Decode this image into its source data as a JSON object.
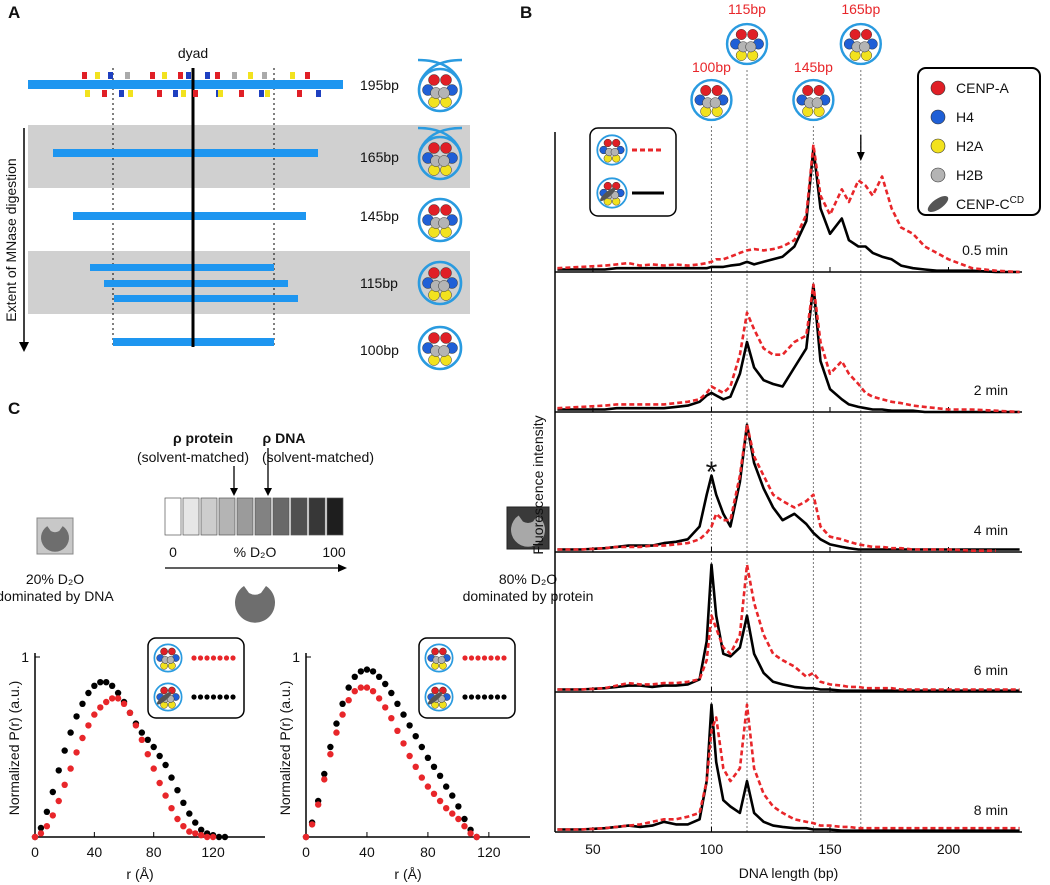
{
  "panel_a": {
    "label": "A",
    "dyad": "dyad",
    "axis_label": "Extent of MNase digestion",
    "fragments": [
      "195bp",
      "165bp",
      "145bp",
      "115bp",
      "100bp"
    ]
  },
  "panel_c_scheme": {
    "label": "C",
    "protein": "ρ protein",
    "protein_note": "(solvent-matched)",
    "dna": "ρ DNA",
    "dna_note": "(solvent-matched)",
    "scale_min": 0,
    "scale_unit": "% D₂O",
    "scale_max": 100,
    "left_box": "20% D₂O",
    "left_note": "dominated by DNA",
    "right_box": "80% D₂O",
    "right_note": "dominated by protein"
  },
  "chart_data": [
    {
      "type": "line",
      "label": "B",
      "xlabel": "DNA length (bp)",
      "ylabel": "Fluorescence intensity",
      "xlim": [
        34,
        231
      ],
      "xticks": [
        50,
        100,
        150,
        200
      ],
      "ylim": [
        0,
        1.1
      ],
      "markers": [
        {
          "x": 100,
          "label": "100bp"
        },
        {
          "x": 115,
          "label": "115bp"
        },
        {
          "x": 143,
          "label": "145bp"
        },
        {
          "x": 163,
          "label": "165bp"
        }
      ],
      "legend": [
        {
          "name": "CENP-A",
          "color": "#e01f26"
        },
        {
          "name": "H4",
          "color": "#1f5fd6"
        },
        {
          "name": "H2A",
          "color": "#f2e21e"
        },
        {
          "name": "H2B",
          "color": "#b4b4b4"
        },
        {
          "name": "CENP-C",
          "sup": "CD",
          "color": "#555555"
        }
      ],
      "x": [
        35,
        45,
        55,
        60,
        65,
        70,
        75,
        80,
        85,
        90,
        95,
        98,
        100,
        102,
        105,
        108,
        112,
        115,
        118,
        122,
        126,
        130,
        135,
        140,
        143,
        146,
        150,
        155,
        158,
        162,
        165,
        168,
        172,
        176,
        180,
        185,
        190,
        195,
        200,
        210,
        220,
        230
      ],
      "panels": [
        {
          "label": "0.5 min",
          "series": [
            {
              "color": "#000000",
              "values": [
                0.02,
                0.02,
                0.02,
                0.03,
                0.03,
                0.03,
                0.03,
                0.03,
                0.03,
                0.03,
                0.03,
                0.03,
                0.04,
                0.04,
                0.04,
                0.05,
                0.06,
                0.08,
                0.06,
                0.08,
                0.1,
                0.12,
                0.2,
                0.4,
                0.97,
                0.5,
                0.3,
                0.42,
                0.25,
                0.2,
                0.2,
                0.15,
                0.12,
                0.1,
                0.05,
                0.03,
                0.02,
                0.01,
                0.01,
                0.01,
                0,
                0
              ]
            },
            {
              "color": "#e8262a",
              "dash": true,
              "values": [
                0.03,
                0.04,
                0.05,
                0.06,
                0.07,
                0.05,
                0.06,
                0.05,
                0.06,
                0.05,
                0.06,
                0.07,
                0.08,
                0.1,
                0.1,
                0.12,
                0.15,
                0.17,
                0.18,
                0.17,
                0.18,
                0.2,
                0.25,
                0.45,
                1.0,
                0.6,
                0.45,
                0.65,
                0.55,
                0.72,
                0.68,
                0.6,
                0.75,
                0.5,
                0.35,
                0.3,
                0.2,
                0.15,
                0.1,
                0.03,
                0.01,
                0
              ]
            }
          ]
        },
        {
          "label": "2 min",
          "series": [
            {
              "color": "#000000",
              "values": [
                0.02,
                0.02,
                0.02,
                0.03,
                0.03,
                0.03,
                0.03,
                0.03,
                0.04,
                0.05,
                0.08,
                0.13,
                0.15,
                0.13,
                0.1,
                0.12,
                0.3,
                0.55,
                0.35,
                0.25,
                0.22,
                0.2,
                0.35,
                0.5,
                1.0,
                0.4,
                0.18,
                0.1,
                0.06,
                0.04,
                0.03,
                0.02,
                0.02,
                0.01,
                0.01,
                0.01,
                0,
                0,
                0,
                0,
                0,
                0
              ]
            },
            {
              "color": "#e8262a",
              "dash": true,
              "values": [
                0.03,
                0.04,
                0.05,
                0.06,
                0.06,
                0.06,
                0.06,
                0.06,
                0.07,
                0.08,
                0.1,
                0.15,
                0.2,
                0.18,
                0.15,
                0.2,
                0.45,
                0.78,
                0.65,
                0.5,
                0.45,
                0.45,
                0.55,
                0.6,
                1.0,
                0.55,
                0.3,
                0.4,
                0.3,
                0.22,
                0.15,
                0.12,
                0.1,
                0.08,
                0.07,
                0.05,
                0.04,
                0.03,
                0.02,
                0.02,
                0.01,
                0
              ]
            }
          ]
        },
        {
          "label": "4 min",
          "annotation": "*",
          "series": [
            {
              "color": "#000000",
              "values": [
                0.02,
                0.02,
                0.03,
                0.04,
                0.05,
                0.05,
                0.05,
                0.07,
                0.08,
                0.1,
                0.2,
                0.45,
                0.6,
                0.45,
                0.3,
                0.2,
                0.55,
                1.0,
                0.7,
                0.5,
                0.35,
                0.25,
                0.3,
                0.22,
                0.15,
                0.1,
                0.06,
                0.04,
                0.03,
                0.02,
                0.02,
                0.02,
                0.02,
                0.02,
                0.02,
                0.02,
                0.02,
                0.02,
                0.02,
                0.02,
                0.02,
                0.02
              ]
            },
            {
              "color": "#e8262a",
              "dash": true,
              "values": [
                0.02,
                0.02,
                0.03,
                0.04,
                0.04,
                0.04,
                0.05,
                0.05,
                0.06,
                0.07,
                0.1,
                0.15,
                0.2,
                0.3,
                0.25,
                0.25,
                0.6,
                1.0,
                0.75,
                0.6,
                0.45,
                0.4,
                0.35,
                0.4,
                0.45,
                0.2,
                0.12,
                0.1,
                0.08,
                0.06,
                0.05,
                0.04,
                0.04,
                0.03,
                0.03,
                0.02,
                0.02,
                0.02,
                0.02,
                0.01,
                0.01,
                null
              ]
            }
          ]
        },
        {
          "label": "6 min",
          "series": [
            {
              "color": "#000000",
              "values": [
                0.02,
                0.02,
                0.03,
                0.04,
                0.05,
                0.05,
                0.04,
                0.05,
                0.05,
                0.06,
                0.1,
                0.4,
                1.0,
                0.6,
                0.3,
                0.28,
                0.35,
                0.6,
                0.3,
                0.15,
                0.08,
                0.06,
                0.04,
                0.03,
                0.03,
                0.02,
                0.02,
                0.01,
                0.01,
                0.01,
                0.01,
                0.01,
                0.01,
                0.01,
                0.01,
                0.01,
                0.01,
                0.01,
                0.01,
                0.01,
                0.01,
                0.01
              ]
            },
            {
              "color": "#e8262a",
              "dash": true,
              "values": [
                0.02,
                0.02,
                0.03,
                0.05,
                0.07,
                0.06,
                0.06,
                0.07,
                0.07,
                0.08,
                0.1,
                0.25,
                0.6,
                0.5,
                0.35,
                0.3,
                0.45,
                1.0,
                0.7,
                0.45,
                0.3,
                0.25,
                0.2,
                0.12,
                0.15,
                0.08,
                0.06,
                0.05,
                0.04,
                0.04,
                0.03,
                0.03,
                0.03,
                0.03,
                0.02,
                0.02,
                0.02,
                0.02,
                0.02,
                0.02,
                0.02,
                0.02
              ]
            }
          ]
        },
        {
          "label": "8 min",
          "series": [
            {
              "color": "#000000",
              "values": [
                0.02,
                0.02,
                0.03,
                0.04,
                0.05,
                0.04,
                0.05,
                0.08,
                0.06,
                0.06,
                0.1,
                0.4,
                1.0,
                0.55,
                0.25,
                0.2,
                0.15,
                0.4,
                0.15,
                0.08,
                0.05,
                0.04,
                0.03,
                0.03,
                0.02,
                0.02,
                0.02,
                0.01,
                0.01,
                0.01,
                0.01,
                0.01,
                0.01,
                0.01,
                0.01,
                0.01,
                0.01,
                0.01,
                0.01,
                0.01,
                0.01,
                0.01
              ]
            },
            {
              "color": "#e8262a",
              "dash": true,
              "values": [
                0.02,
                0.02,
                0.03,
                0.04,
                0.05,
                0.06,
                0.08,
                0.1,
                0.1,
                0.12,
                0.15,
                0.4,
                0.8,
                0.9,
                0.5,
                0.4,
                0.5,
                1.0,
                0.5,
                0.3,
                0.2,
                0.15,
                0.1,
                0.08,
                0.07,
                0.05,
                0.05,
                0.04,
                0.04,
                0.03,
                0.03,
                0.03,
                0.03,
                0.03,
                0.03,
                0.03,
                0.03,
                0.03,
                0.03,
                0.03,
                0.03,
                0.03
              ]
            }
          ]
        }
      ]
    },
    {
      "type": "scatter",
      "xlabel": "r (Å)",
      "ylabel": "Normalized P(r) (a.u.)",
      "xlim": [
        0,
        155
      ],
      "xticks": [
        0,
        40,
        80,
        120
      ],
      "ylim": [
        0,
        1
      ],
      "yticks": [
        1
      ],
      "x": [
        0,
        4,
        8,
        12,
        16,
        20,
        24,
        28,
        32,
        36,
        40,
        44,
        48,
        52,
        56,
        60,
        64,
        68,
        72,
        76,
        80,
        84,
        88,
        92,
        96,
        100,
        104,
        108,
        112,
        116,
        120,
        124,
        128
      ],
      "series": [
        {
          "color": "#000000",
          "values": [
            0,
            0.05,
            0.14,
            0.25,
            0.37,
            0.48,
            0.58,
            0.67,
            0.74,
            0.8,
            0.84,
            0.86,
            0.86,
            0.84,
            0.8,
            0.75,
            0.69,
            0.63,
            0.58,
            0.54,
            0.5,
            0.45,
            0.4,
            0.33,
            0.26,
            0.19,
            0.13,
            0.08,
            0.04,
            0.02,
            0.01,
            0,
            0
          ]
        },
        {
          "color": "#e8262a",
          "values": [
            0,
            0.02,
            0.06,
            0.12,
            0.2,
            0.29,
            0.38,
            0.47,
            0.55,
            0.62,
            0.68,
            0.72,
            0.75,
            0.77,
            0.77,
            0.74,
            0.69,
            0.62,
            0.54,
            0.46,
            0.38,
            0.3,
            0.23,
            0.16,
            0.1,
            0.06,
            0.03,
            0.02,
            0.01,
            0,
            0,
            null,
            null
          ]
        }
      ]
    },
    {
      "type": "scatter",
      "xlabel": "r (Å)",
      "ylabel": "Normalized P(r) (a.u.)",
      "xlim": [
        0,
        147
      ],
      "xticks": [
        0,
        40,
        80,
        120
      ],
      "ylim": [
        0,
        1
      ],
      "yticks": [
        1
      ],
      "x": [
        0,
        4,
        8,
        12,
        16,
        20,
        24,
        28,
        32,
        36,
        40,
        44,
        48,
        52,
        56,
        60,
        64,
        68,
        72,
        76,
        80,
        84,
        88,
        92,
        96,
        100,
        104,
        108,
        112
      ],
      "series": [
        {
          "color": "#000000",
          "values": [
            0,
            0.08,
            0.2,
            0.35,
            0.5,
            0.63,
            0.74,
            0.83,
            0.89,
            0.92,
            0.93,
            0.92,
            0.89,
            0.85,
            0.8,
            0.74,
            0.68,
            0.62,
            0.56,
            0.5,
            0.44,
            0.39,
            0.34,
            0.28,
            0.23,
            0.17,
            0.1,
            0.04,
            0
          ]
        },
        {
          "color": "#e8262a",
          "values": [
            0,
            0.07,
            0.18,
            0.32,
            0.46,
            0.58,
            0.68,
            0.76,
            0.81,
            0.83,
            0.83,
            0.81,
            0.77,
            0.72,
            0.66,
            0.59,
            0.52,
            0.45,
            0.39,
            0.33,
            0.28,
            0.24,
            0.2,
            0.16,
            0.13,
            0.1,
            0.06,
            0.02,
            0
          ]
        }
      ]
    }
  ]
}
